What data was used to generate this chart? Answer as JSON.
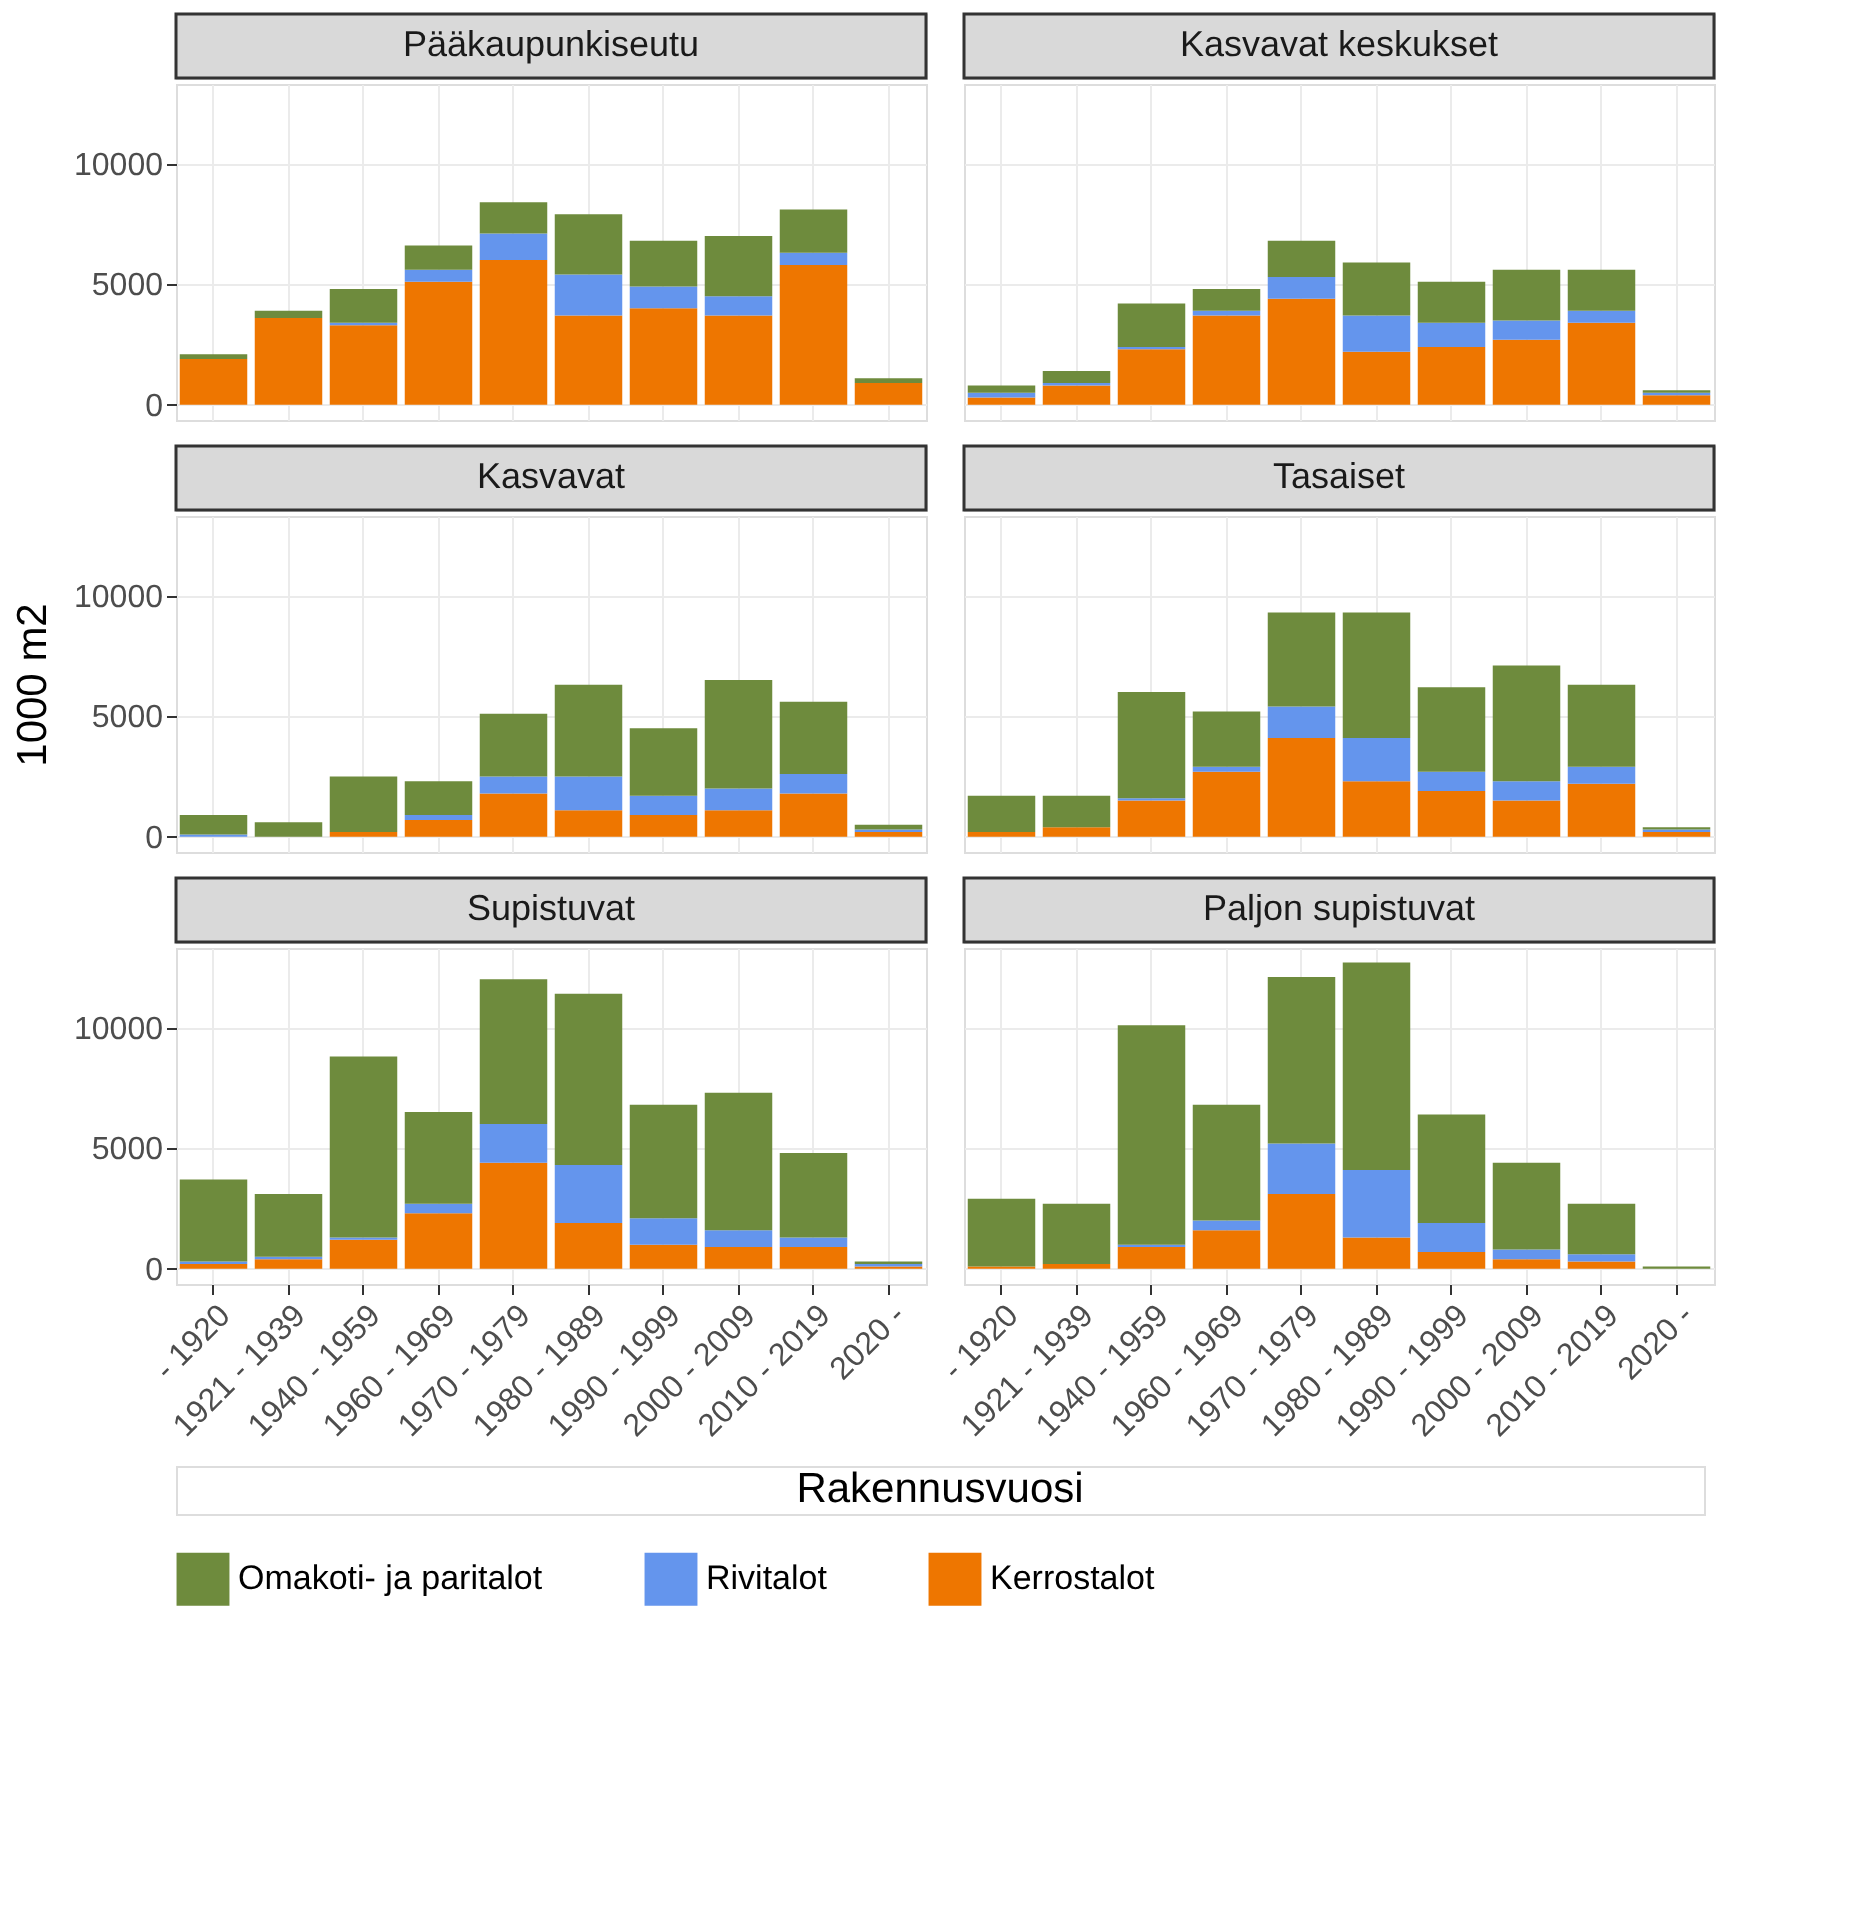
{
  "chart_data": [
    {
      "type": "bar",
      "title": "Pääkaupunkiseutu",
      "stacked": true,
      "legend": "bottom",
      "grid": true,
      "tick_labels": "y",
      "categories": [
        "- 1920",
        "1921 - 1939",
        "1940 - 1959",
        "1960 - 1969",
        "1970 - 1979",
        "1980 - 1989",
        "1990 - 1999",
        "2000 - 2009",
        "2010 - 2019",
        "2020 -"
      ],
      "ylim": [
        -630,
        13300
      ],
      "yticks": [
        0,
        5000,
        10000
      ],
      "series": [
        {
          "name": "Kerrostalot",
          "color": "#ee7600",
          "values": [
            1900,
            3600,
            3300,
            5100,
            6000,
            3700,
            4000,
            3700,
            5800,
            900
          ]
        },
        {
          "name": "Rivitalot",
          "color": "#6495ed",
          "values": [
            0,
            0,
            100,
            500,
            1100,
            1700,
            900,
            800,
            500,
            0
          ]
        },
        {
          "name": "Omakoti- ja paritalot",
          "color": "#6e8b3d",
          "values": [
            200,
            300,
            1400,
            1000,
            1300,
            2500,
            1900,
            2500,
            1800,
            200
          ]
        }
      ]
    },
    {
      "type": "bar",
      "title": "Kasvavat keskukset",
      "stacked": true,
      "legend": "bottom",
      "grid": true,
      "tick_labels": false,
      "categories": [
        "- 1920",
        "1921 - 1939",
        "1940 - 1959",
        "1960 - 1969",
        "1970 - 1979",
        "1980 - 1989",
        "1990 - 1999",
        "2000 - 2009",
        "2010 - 2019",
        "2020 -"
      ],
      "ylim": [
        -630,
        13300
      ],
      "yticks": [
        0,
        5000,
        10000
      ],
      "series": [
        {
          "name": "Kerrostalot",
          "color": "#ee7600",
          "values": [
            300,
            800,
            2300,
            3700,
            4400,
            2200,
            2400,
            2700,
            3400,
            400
          ]
        },
        {
          "name": "Rivitalot",
          "color": "#6495ed",
          "values": [
            200,
            100,
            100,
            200,
            900,
            1500,
            1000,
            800,
            500,
            100
          ]
        },
        {
          "name": "Omakoti- ja paritalot",
          "color": "#6e8b3d",
          "values": [
            300,
            500,
            1800,
            900,
            1500,
            2200,
            1700,
            2100,
            1700,
            100
          ]
        }
      ]
    },
    {
      "type": "bar",
      "title": "Kasvavat",
      "ylabel": "1000 m2",
      "stacked": true,
      "legend": "bottom",
      "grid": true,
      "tick_labels": "y",
      "categories": [
        "- 1920",
        "1921 - 1939",
        "1940 - 1959",
        "1960 - 1969",
        "1970 - 1979",
        "1980 - 1989",
        "1990 - 1999",
        "2000 - 2009",
        "2010 - 2019",
        "2020 -"
      ],
      "ylim": [
        -630,
        13300
      ],
      "yticks": [
        0,
        5000,
        10000
      ],
      "series": [
        {
          "name": "Kerrostalot",
          "color": "#ee7600",
          "values": [
            0,
            0,
            200,
            700,
            1800,
            1100,
            900,
            1100,
            1800,
            200
          ]
        },
        {
          "name": "Rivitalot",
          "color": "#6495ed",
          "values": [
            100,
            0,
            0,
            200,
            700,
            1400,
            800,
            900,
            800,
            100
          ]
        },
        {
          "name": "Omakoti- ja paritalot",
          "color": "#6e8b3d",
          "values": [
            800,
            600,
            2300,
            1400,
            2600,
            3800,
            2800,
            4500,
            3000,
            200
          ]
        }
      ]
    },
    {
      "type": "bar",
      "title": "Tasaiset",
      "stacked": true,
      "legend": "bottom",
      "grid": true,
      "tick_labels": false,
      "categories": [
        "- 1920",
        "1921 - 1939",
        "1940 - 1959",
        "1960 - 1969",
        "1970 - 1979",
        "1980 - 1989",
        "1990 - 1999",
        "2000 - 2009",
        "2010 - 2019",
        "2020 -"
      ],
      "ylim": [
        -630,
        13300
      ],
      "yticks": [
        0,
        5000,
        10000
      ],
      "series": [
        {
          "name": "Kerrostalot",
          "color": "#ee7600",
          "values": [
            200,
            400,
            1500,
            2700,
            4100,
            2300,
            1900,
            1500,
            2200,
            200
          ]
        },
        {
          "name": "Rivitalot",
          "color": "#6495ed",
          "values": [
            0,
            0,
            100,
            200,
            1300,
            1800,
            800,
            800,
            700,
            100
          ]
        },
        {
          "name": "Omakoti- ja paritalot",
          "color": "#6e8b3d",
          "values": [
            1500,
            1300,
            4400,
            2300,
            3900,
            5200,
            3500,
            4800,
            3400,
            100
          ]
        }
      ]
    },
    {
      "type": "bar",
      "title": "Supistuvat",
      "xlabel": "Rakennusvuosi",
      "stacked": true,
      "legend": "bottom",
      "grid": true,
      "categories": [
        "- 1920",
        "1921 - 1939",
        "1940 - 1959",
        "1960 - 1969",
        "1970 - 1979",
        "1980 - 1989",
        "1990 - 1999",
        "2000 - 2009",
        "2010 - 2019",
        "2020 -"
      ],
      "ylim": [
        -630,
        13300
      ],
      "yticks": [
        0,
        5000,
        10000
      ],
      "series": [
        {
          "name": "Kerrostalot",
          "color": "#ee7600",
          "values": [
            200,
            400,
            1200,
            2300,
            4400,
            1900,
            1000,
            900,
            900,
            100
          ]
        },
        {
          "name": "Rivitalot",
          "color": "#6495ed",
          "values": [
            100,
            100,
            100,
            400,
            1600,
            2400,
            1100,
            700,
            400,
            100
          ]
        },
        {
          "name": "Omakoti- ja paritalot",
          "color": "#6e8b3d",
          "values": [
            3400,
            2600,
            7500,
            3800,
            6000,
            7100,
            4700,
            5700,
            3500,
            100
          ]
        }
      ]
    },
    {
      "type": "bar",
      "title": "Paljon supistuvat",
      "stacked": true,
      "legend": "bottom",
      "grid": true,
      "tick_labels": "x",
      "categories": [
        "- 1920",
        "1921 - 1939",
        "1940 - 1959",
        "1960 - 1969",
        "1970 - 1979",
        "1980 - 1989",
        "1990 - 1999",
        "2000 - 2009",
        "2010 - 2019",
        "2020 -"
      ],
      "ylim": [
        -630,
        13300
      ],
      "yticks": [
        0,
        5000,
        10000
      ],
      "series": [
        {
          "name": "Kerrostalot",
          "color": "#ee7600",
          "values": [
            100,
            200,
            900,
            1600,
            3100,
            1300,
            700,
            400,
            300,
            0
          ]
        },
        {
          "name": "Rivitalot",
          "color": "#6495ed",
          "values": [
            0,
            0,
            100,
            400,
            2100,
            2800,
            1200,
            400,
            300,
            0
          ]
        },
        {
          "name": "Omakoti- ja paritalot",
          "color": "#6e8b3d",
          "values": [
            2800,
            2500,
            9100,
            4800,
            6900,
            8600,
            4500,
            3600,
            2100,
            100
          ]
        }
      ]
    }
  ]
}
